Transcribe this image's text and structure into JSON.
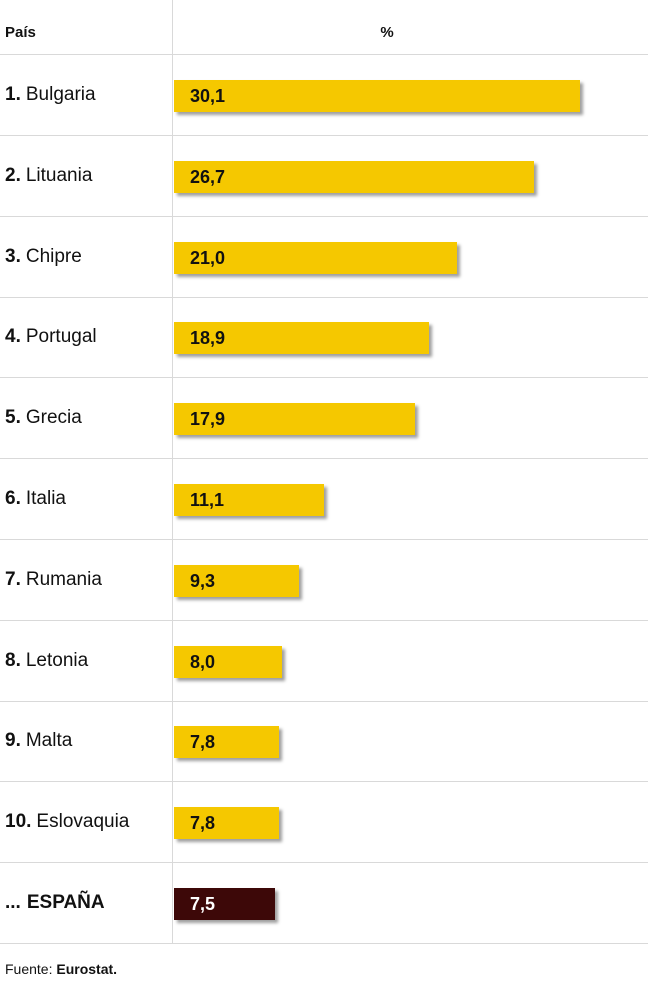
{
  "header": {
    "country_label": "País",
    "value_label": "%"
  },
  "colors": {
    "bar": "#f5c800",
    "highlight": "#3d0808",
    "value_text": "#111111",
    "highlight_text": "#ffffff"
  },
  "chart_data": {
    "type": "bar",
    "orientation": "horizontal",
    "categories": [
      "Bulgaria",
      "Lituania",
      "Chipre",
      "Portugal",
      "Grecia",
      "Italia",
      "Rumania",
      "Letonia",
      "Malta",
      "Eslovaquia",
      "ESPAÑA"
    ],
    "values": [
      30.1,
      26.7,
      21.0,
      18.9,
      17.9,
      11.1,
      9.3,
      8.0,
      7.8,
      7.8,
      7.5
    ],
    "xlim": [
      0,
      30.1
    ],
    "grid": false,
    "rows": [
      {
        "rank": "1.",
        "name": "Bulgaria",
        "value": 30.1,
        "value_label": "30,1",
        "highlight": false
      },
      {
        "rank": "2.",
        "name": "Lituania",
        "value": 26.7,
        "value_label": "26,7",
        "highlight": false
      },
      {
        "rank": "3.",
        "name": "Chipre",
        "value": 21.0,
        "value_label": "21,0",
        "highlight": false
      },
      {
        "rank": "4.",
        "name": "Portugal",
        "value": 18.9,
        "value_label": "18,9",
        "highlight": false
      },
      {
        "rank": "5.",
        "name": "Grecia",
        "value": 17.9,
        "value_label": "17,9",
        "highlight": false
      },
      {
        "rank": "6.",
        "name": "Italia",
        "value": 11.1,
        "value_label": "11,1",
        "highlight": false
      },
      {
        "rank": "7.",
        "name": "Rumania",
        "value": 9.3,
        "value_label": "9,3",
        "highlight": false
      },
      {
        "rank": "8.",
        "name": "Letonia",
        "value": 8.0,
        "value_label": "8,0",
        "highlight": false
      },
      {
        "rank": "9.",
        "name": "Malta",
        "value": 7.8,
        "value_label": "7,8",
        "highlight": false
      },
      {
        "rank": "10.",
        "name": "Eslovaquia",
        "value": 7.8,
        "value_label": "7,8",
        "highlight": false
      },
      {
        "rank": "...",
        "name": "ESPAÑA",
        "value": 7.5,
        "value_label": "7,5",
        "highlight": true
      }
    ]
  },
  "source": {
    "prefix": "Fuente:",
    "name": "Eurostat."
  }
}
